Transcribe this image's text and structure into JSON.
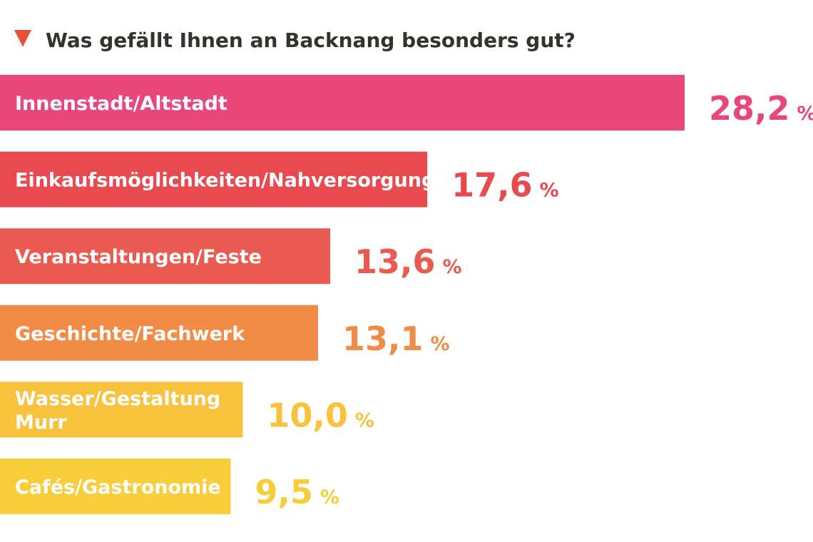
{
  "chart_data": {
    "type": "bar",
    "orientation": "horizontal",
    "title": "Was gefällt Ihnen an Backnang besonders gut?",
    "title_marker": "triangle-down",
    "unit": "%",
    "categories": [
      [
        "Innenstadt/Altstadt"
      ],
      [
        "Einkaufsmöglichkeiten/Nahversorgung"
      ],
      [
        "Veranstaltungen/Feste"
      ],
      [
        "Geschichte/Fachwerk"
      ],
      [
        "Wasser/Gestaltung",
        "Murr"
      ],
      [
        "Cafés/Gastronomie"
      ]
    ],
    "values": [
      28.2,
      17.6,
      13.6,
      13.1,
      10.0,
      9.5
    ],
    "value_labels": [
      "28,2",
      "17,6",
      "13,6",
      "13,1",
      "10,0",
      "9,5"
    ],
    "colors": [
      "#e8477c",
      "#e84a4f",
      "#ea5a50",
      "#f28b45",
      "#f9c23c",
      "#f8cd3a"
    ],
    "xlim": [
      0,
      28.2
    ],
    "grid": false,
    "legend": "none"
  },
  "colors": {
    "title_text": "#33332b",
    "marker": "#e8503e"
  }
}
